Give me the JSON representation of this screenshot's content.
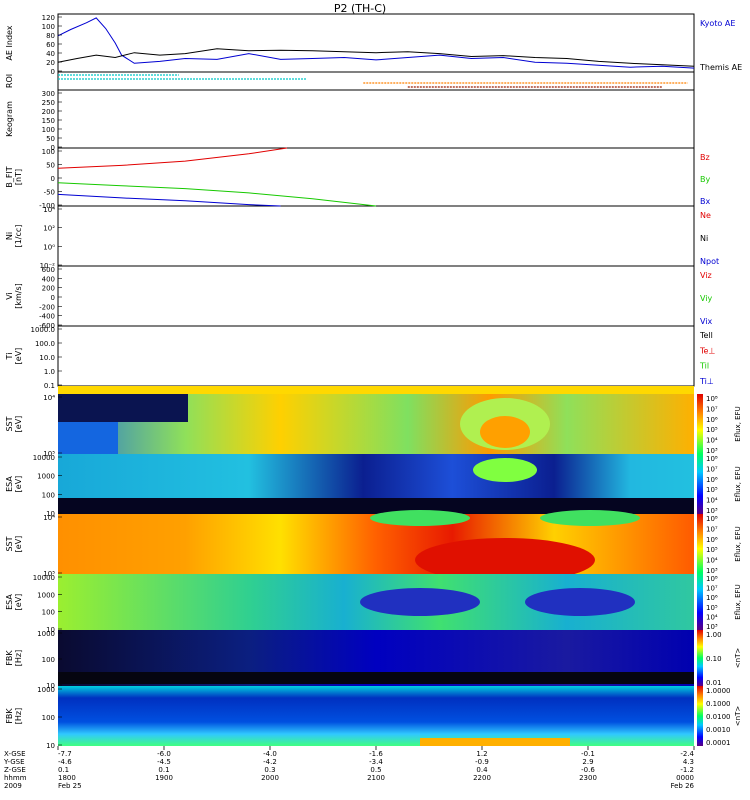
{
  "title": "P2 (TH-C)",
  "colors": {
    "red": "#e10000",
    "green": "#17c900",
    "blue": "#0000d2",
    "black": "#000000",
    "cyan": "#00c8c8",
    "orange": "#ff8000",
    "brown": "#9b1c00"
  },
  "chart_data": [
    {
      "type": "line",
      "panel": "ae",
      "ylabel": "AE Index",
      "ylim": [
        0,
        120
      ],
      "yticks": [
        "0",
        "20",
        "40",
        "60",
        "80",
        "100",
        "120"
      ],
      "series": [
        {
          "name": "Kyoto AE",
          "color": "blue",
          "x": [
            0,
            0.02,
            0.045,
            0.06,
            0.075,
            0.09,
            0.1,
            0.12,
            0.16,
            0.2,
            0.25,
            0.3,
            0.35,
            0.4,
            0.45,
            0.5,
            0.55,
            0.6,
            0.65,
            0.7,
            0.75,
            0.8,
            0.85,
            0.9,
            0.95,
            1
          ],
          "values": [
            75,
            88,
            102,
            112,
            90,
            60,
            35,
            18,
            22,
            28,
            26,
            38,
            26,
            28,
            30,
            25,
            30,
            35,
            28,
            30,
            20,
            18,
            14,
            10,
            12,
            8
          ]
        },
        {
          "name": "Themis AE",
          "color": "black",
          "x": [
            0,
            0.03,
            0.06,
            0.09,
            0.12,
            0.16,
            0.2,
            0.25,
            0.3,
            0.35,
            0.4,
            0.45,
            0.5,
            0.55,
            0.6,
            0.65,
            0.7,
            0.75,
            0.8,
            0.85,
            0.9,
            0.95,
            1
          ],
          "values": [
            20,
            28,
            35,
            30,
            40,
            35,
            38,
            48,
            44,
            45,
            44,
            42,
            40,
            42,
            38,
            32,
            34,
            30,
            28,
            22,
            18,
            15,
            12
          ]
        }
      ]
    },
    {
      "type": "timeline",
      "panel": "roi",
      "ylabel": "ROI",
      "rows": [
        {
          "color": "cyan",
          "segments": [
            [
              0.0,
              0.19
            ]
          ]
        },
        {
          "color": "cyan",
          "segments": [
            [
              0.0,
              0.39
            ]
          ]
        },
        {
          "color": "orange",
          "segments": [
            [
              0.48,
              0.99
            ]
          ]
        },
        {
          "color": "brown",
          "segments": [
            [
              0.55,
              0.95
            ]
          ]
        }
      ]
    },
    {
      "type": "line",
      "panel": "keogram",
      "ylabel": "Keogram",
      "ylim": [
        0,
        300
      ],
      "yticks": [
        "0",
        "50",
        "100",
        "150",
        "200",
        "250",
        "300"
      ],
      "series": []
    },
    {
      "type": "line",
      "panel": "bfit",
      "ylabel": "B_FIT\n[nT]",
      "ylim": [
        -100,
        100
      ],
      "yticks": [
        "-100",
        "-50",
        "0",
        "50",
        "100"
      ],
      "series": [
        {
          "name": "Bz",
          "color": "red",
          "x": [
            0,
            0.1,
            0.2,
            0.3,
            0.36
          ],
          "values": [
            30,
            40,
            55,
            80,
            100
          ]
        },
        {
          "name": "By",
          "color": "green",
          "x": [
            0,
            0.1,
            0.2,
            0.3,
            0.4,
            0.5
          ],
          "values": [
            -20,
            -30,
            -40,
            -55,
            -75,
            -100
          ]
        },
        {
          "name": "Bx",
          "color": "blue",
          "x": [
            0,
            0.1,
            0.2,
            0.3,
            0.35
          ],
          "values": [
            -60,
            -72,
            -82,
            -95,
            -100
          ]
        }
      ]
    },
    {
      "type": "line",
      "panel": "density",
      "ylabel": "Ni\n[1/cc]",
      "yscale": "log",
      "yticks": [
        "10⁻²",
        "10⁰",
        "10²",
        "10⁴"
      ],
      "series": [
        {
          "name": "Ne",
          "color": "red"
        },
        {
          "name": "Ni",
          "color": "black"
        },
        {
          "name": "Npot",
          "color": "blue"
        }
      ]
    },
    {
      "type": "line",
      "panel": "velocity",
      "ylabel": "Vi\n[km/s]",
      "ylim": [
        -600,
        600
      ],
      "yticks": [
        "-600",
        "-400",
        "-200",
        "0",
        "200",
        "400",
        "600"
      ],
      "series": [
        {
          "name": "Viz",
          "color": "red"
        },
        {
          "name": "Viy",
          "color": "green"
        },
        {
          "name": "Vix",
          "color": "blue"
        }
      ]
    },
    {
      "type": "line",
      "panel": "temperature",
      "ylabel": "Ti\n[eV]",
      "yscale": "log",
      "yticks": [
        "0.1",
        "1.0",
        "10.0",
        "100.0",
        "1000.0"
      ],
      "series": [
        {
          "name": "Tell",
          "color": "black"
        },
        {
          "name": "Te⊥",
          "color": "red"
        },
        {
          "name": "Til",
          "color": "green"
        },
        {
          "name": "Ti⊥",
          "color": "blue"
        }
      ]
    },
    {
      "type": "heatmap",
      "panel": "sst_i",
      "ylabel": "SST\n[eV]",
      "yticks": [
        "10⁵",
        "10⁴"
      ],
      "colorbar_label": "Eflux, EFU",
      "colorbar_ticks": [
        "10³",
        "10⁴",
        "10⁵",
        "10⁶",
        "10⁷",
        "10⁸"
      ]
    },
    {
      "type": "heatmap",
      "panel": "esa_i",
      "ylabel": "ESA\n[eV]",
      "yticks": [
        "10",
        "100",
        "1000",
        "10000"
      ],
      "colorbar_label": "Eflux, EFU",
      "colorbar_ticks": [
        "10³",
        "10⁴",
        "10⁵",
        "10⁶",
        "10⁷",
        "10⁸"
      ]
    },
    {
      "type": "heatmap",
      "panel": "sst_e",
      "ylabel": "SST\n[eV]",
      "yticks": [
        "10⁵",
        "10⁴"
      ],
      "colorbar_label": "Eflux, EFU",
      "colorbar_ticks": [
        "10³",
        "10⁴",
        "10⁵",
        "10⁶",
        "10⁷",
        "10⁸"
      ]
    },
    {
      "type": "heatmap",
      "panel": "esa_e",
      "ylabel": "ESA\n[eV]",
      "yticks": [
        "10",
        "100",
        "1000",
        "10000"
      ],
      "colorbar_label": "Eflux, EFU",
      "colorbar_ticks": [
        "10³",
        "10⁴",
        "10⁵",
        "10⁶",
        "10⁷",
        "10⁸"
      ]
    },
    {
      "type": "heatmap",
      "panel": "fbk1",
      "ylabel": "FBK\n[Hz]",
      "yticks": [
        "10",
        "100",
        "1000"
      ],
      "colorbar_label": "<nT>",
      "colorbar_ticks": [
        "0.01",
        "0.10",
        "1.00"
      ]
    },
    {
      "type": "heatmap",
      "panel": "fbk2",
      "ylabel": "FBK\n[Hz]",
      "yticks": [
        "10",
        "100",
        "1000"
      ],
      "colorbar_label": "<nT>",
      "colorbar_ticks": [
        "0.0001",
        "0.0010",
        "0.0100",
        "0.1000",
        "1.0000"
      ]
    }
  ],
  "xaxis": {
    "row_labels": [
      "X-GSE",
      "Y-GSE",
      "Z-GSE",
      "hhmm",
      "2009"
    ],
    "ticks": [
      {
        "x": "-7.7",
        "y": "-4.6",
        "z": "0.1",
        "hhmm": "1800",
        "date": "Feb 25"
      },
      {
        "x": "-6.0",
        "y": "-4.5",
        "z": "0.1",
        "hhmm": "1900",
        "date": ""
      },
      {
        "x": "-4.0",
        "y": "-4.2",
        "z": "0.3",
        "hhmm": "2000",
        "date": ""
      },
      {
        "x": "-1.6",
        "y": "-3.4",
        "z": "0.5",
        "hhmm": "2100",
        "date": ""
      },
      {
        "x": "1.2",
        "y": "-0.9",
        "z": "0.4",
        "hhmm": "2200",
        "date": ""
      },
      {
        "x": "-0.1",
        "y": "2.9",
        "z": "-0.6",
        "hhmm": "2300",
        "date": ""
      },
      {
        "x": "-2.4",
        "y": "4.3",
        "z": "-1.2",
        "hhmm": "0000",
        "date": "Feb 26"
      }
    ]
  }
}
